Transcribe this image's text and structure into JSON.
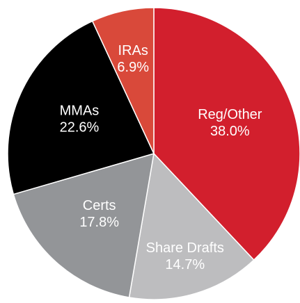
{
  "chart_data": {
    "type": "pie",
    "categories": [
      "Reg/Other",
      "Share Drafts",
      "Certs",
      "MMAs",
      "IRAs"
    ],
    "values": [
      38.0,
      14.7,
      17.8,
      22.6,
      6.9
    ],
    "value_labels": [
      "38.0%",
      "14.7%",
      "17.8%",
      "22.6%",
      "6.9%"
    ],
    "colors": [
      "#d21f2d",
      "#bdbdbf",
      "#939598",
      "#000000",
      "#d9493a"
    ]
  }
}
